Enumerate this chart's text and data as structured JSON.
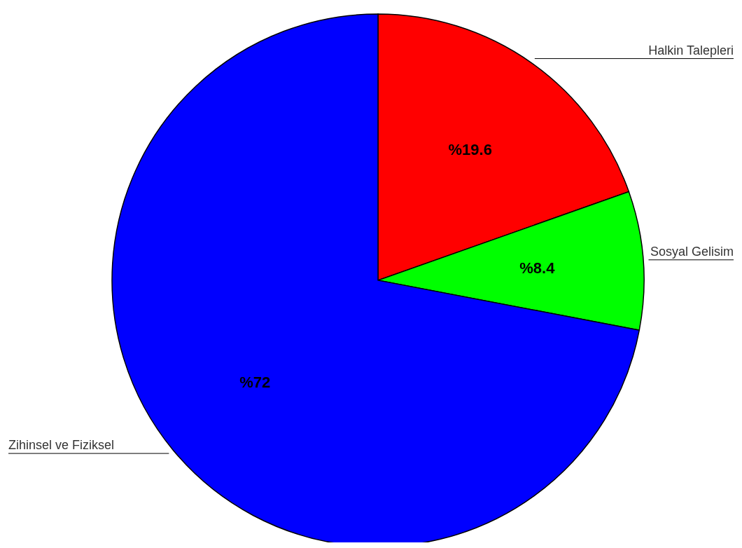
{
  "chart_data": {
    "type": "pie",
    "categories": [
      "Halkin Talepleri",
      "Sosyal Gelisim",
      "Zihinsel ve Fiziksel"
    ],
    "values": [
      19.6,
      8.4,
      72
    ],
    "colors": [
      "#ff0000",
      "#00ff00",
      "#0000ff"
    ],
    "value_labels": [
      "%19.6",
      "%8.4",
      "%72"
    ],
    "legend": false
  }
}
